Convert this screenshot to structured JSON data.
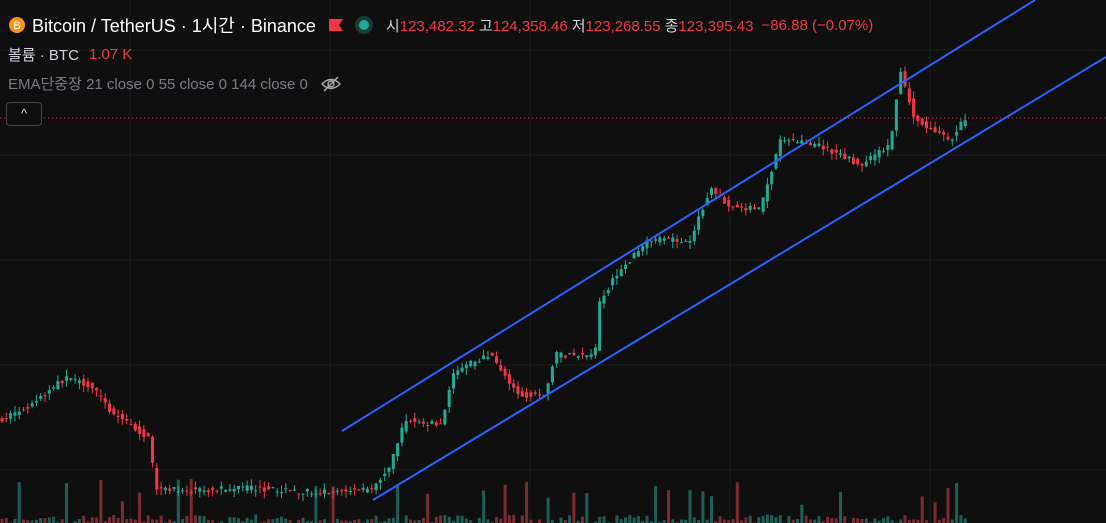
{
  "header": {
    "symbol": "Bitcoin / TetherUS · 1시간 · Binance",
    "ohlc": [
      {
        "key": "시",
        "value": "123,482.32"
      },
      {
        "key": "고",
        "value": "124,358.46"
      },
      {
        "key": "저",
        "value": "123,268.55"
      },
      {
        "key": "종",
        "value": "123,395.43"
      }
    ],
    "change": "−86.88 (−0.07%)"
  },
  "volume": {
    "label": "볼륨 · BTC",
    "value": "1.07 K"
  },
  "indicator": {
    "label": "EMA단중장 21 close 0 55 close 0 144 close 0"
  }
}
